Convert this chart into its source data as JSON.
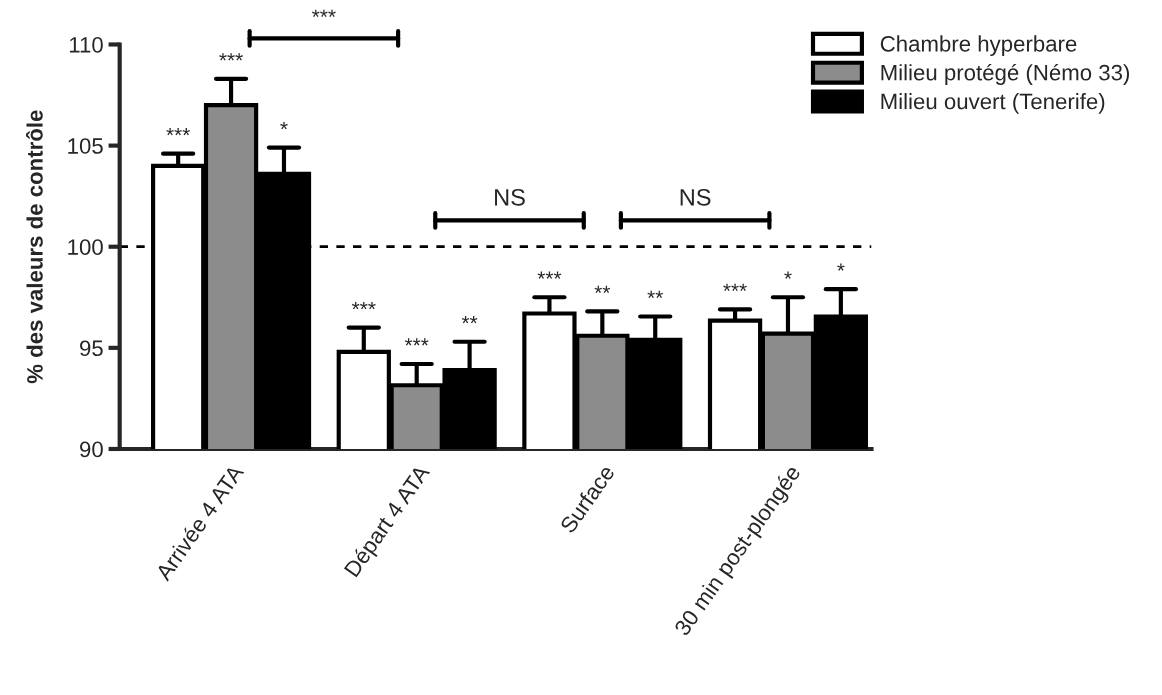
{
  "chart_data": {
    "type": "bar",
    "ylabel": "% des valeurs de contrôle",
    "categories": [
      "Arrivée 4 ATA",
      "Départ 4 ATA",
      "Surface",
      "30 min post-plongée"
    ],
    "series": [
      {
        "name": "Chambre hyperbare",
        "color": "#ffffff",
        "values": [
          104.0,
          94.8,
          96.7,
          96.35
        ],
        "errors": [
          [
            104.0,
            104.6
          ],
          [
            94.8,
            96.0
          ],
          [
            96.7,
            97.5
          ],
          [
            96.35,
            96.9
          ]
        ],
        "value_labels": [
          "***",
          "***",
          "***",
          "***"
        ]
      },
      {
        "name": "Milieu protégé (Némo 33)",
        "color": "#8c8c8c",
        "values": [
          107.0,
          93.15,
          95.6,
          95.7
        ],
        "errors": [
          [
            107.0,
            108.3
          ],
          [
            93.15,
            94.2
          ],
          [
            95.6,
            96.8
          ],
          [
            95.7,
            97.5
          ]
        ],
        "value_labels": [
          "***",
          "***",
          "**",
          "*"
        ]
      },
      {
        "name": "Milieu ouvert (Tenerife)",
        "color": "#000000",
        "values": [
          103.6,
          93.9,
          95.4,
          96.55
        ],
        "errors": [
          [
            103.6,
            104.9
          ],
          [
            93.9,
            95.3
          ],
          [
            95.4,
            96.55
          ],
          [
            96.55,
            97.9
          ]
        ],
        "value_labels": [
          "*",
          "**",
          "**",
          "*"
        ]
      }
    ],
    "ylim": [
      90,
      110
    ],
    "yticks": [
      90,
      95,
      100,
      105,
      110
    ],
    "ref_lines": [
      {
        "axis": "y",
        "value": 100,
        "line_style": "dashed",
        "color": "#000000"
      }
    ],
    "annotations": [
      "***",
      "NS",
      "NS"
    ],
    "legend": "top right",
    "grid": false
  }
}
